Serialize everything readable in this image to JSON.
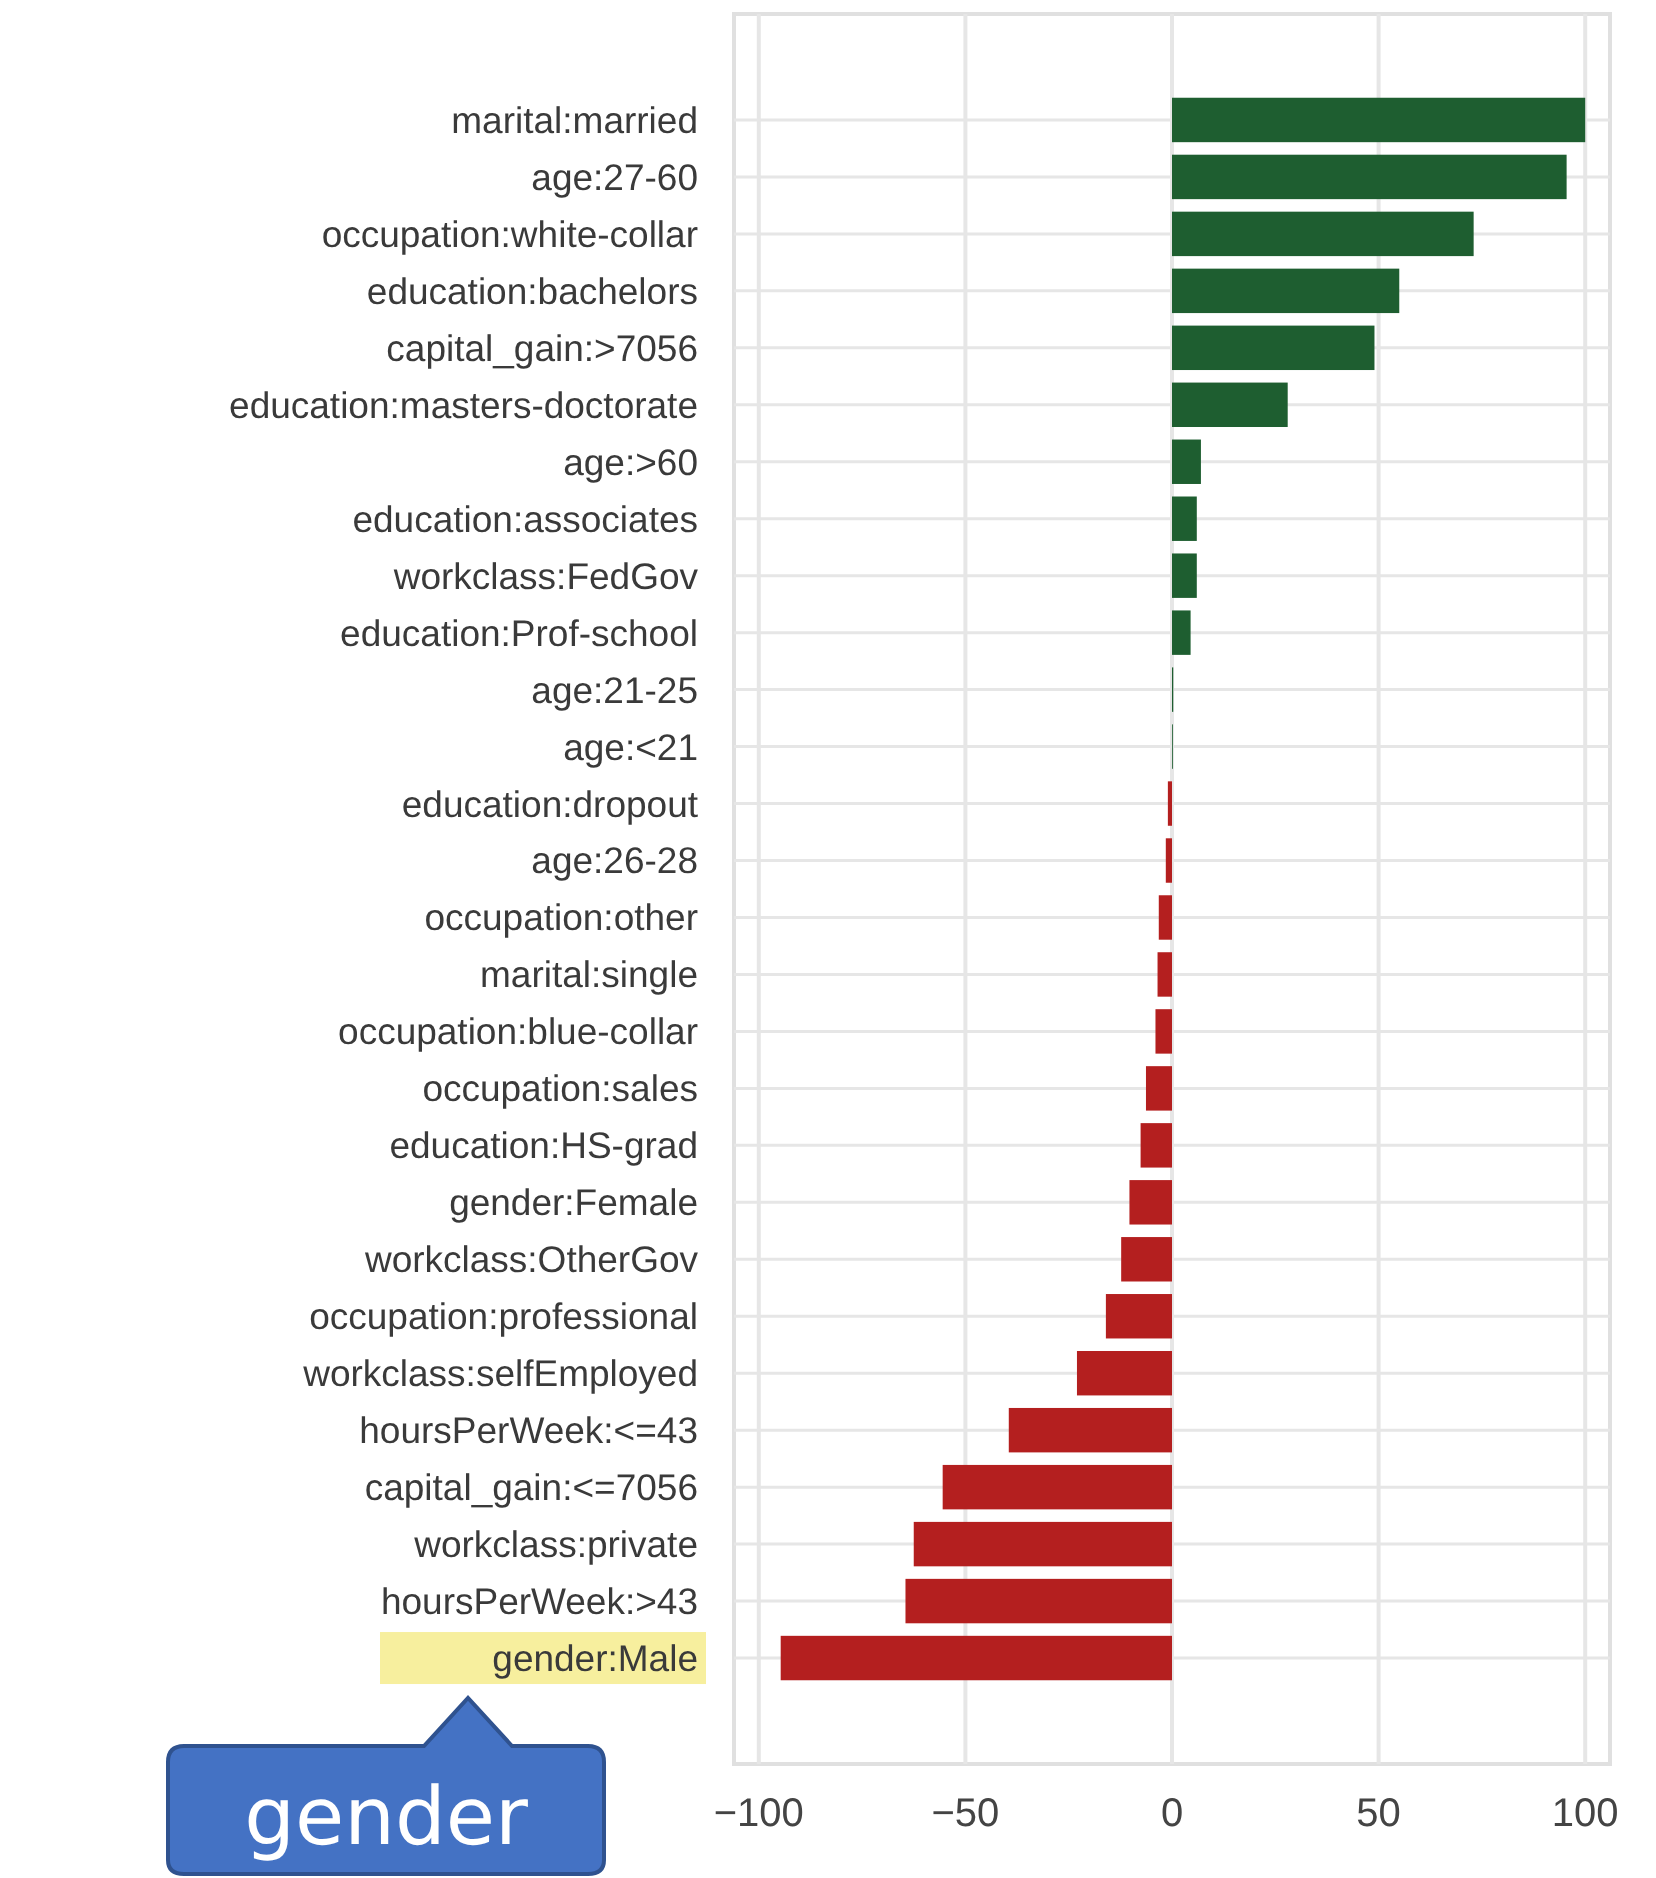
{
  "chart_data": {
    "type": "bar",
    "orientation": "horizontal",
    "categories": [
      "marital:married",
      "age:27-60",
      "occupation:white-collar",
      "education:bachelors",
      "capital_gain:>7056",
      "education:masters-doctorate",
      "age:>60",
      "education:associates",
      "workclass:FedGov",
      "education:Prof-school",
      "age:21-25",
      "age:<21",
      "education:dropout",
      "age:26-28",
      "occupation:other",
      "marital:single",
      "occupation:blue-collar",
      "occupation:sales",
      "education:HS-grad",
      "gender:Female",
      "workclass:OtherGov",
      "occupation:professional",
      "workclass:selfEmployed",
      "hoursPerWeek:<=43",
      "capital_gain:<=7056",
      "workclass:private",
      "hoursPerWeek:>43",
      "gender:Male"
    ],
    "values": [
      100,
      95.5,
      73,
      55,
      49,
      28,
      7,
      6,
      6,
      4.5,
      0.3,
      0.2,
      -1,
      -1.5,
      -3.2,
      -3.5,
      -4,
      -6.3,
      -7.6,
      -10.3,
      -12.3,
      -16,
      -23,
      -39.5,
      -55.5,
      -62.5,
      -64.5,
      -94.7
    ],
    "colors": [
      "#1e5e30",
      "#1e5e30",
      "#1e5e30",
      "#1e5e30",
      "#1e5e30",
      "#1e5e30",
      "#1e5e30",
      "#1e5e30",
      "#1e5e30",
      "#1e5e30",
      "#1e5e30",
      "#1e5e30",
      "#b41f1f",
      "#b41f1f",
      "#b41f1f",
      "#b41f1f",
      "#b41f1f",
      "#b41f1f",
      "#b41f1f",
      "#b41f1f",
      "#b41f1f",
      "#b41f1f",
      "#b41f1f",
      "#b41f1f",
      "#b41f1f",
      "#b41f1f",
      "#b41f1f",
      "#b41f1f"
    ],
    "xlim": [
      -106,
      106
    ],
    "xticks": [
      {
        "value": -100,
        "label": "−100"
      },
      {
        "value": -50,
        "label": "−50"
      },
      0,
      50,
      100
    ],
    "grid": true,
    "annotations": [
      "gender"
    ]
  }
}
